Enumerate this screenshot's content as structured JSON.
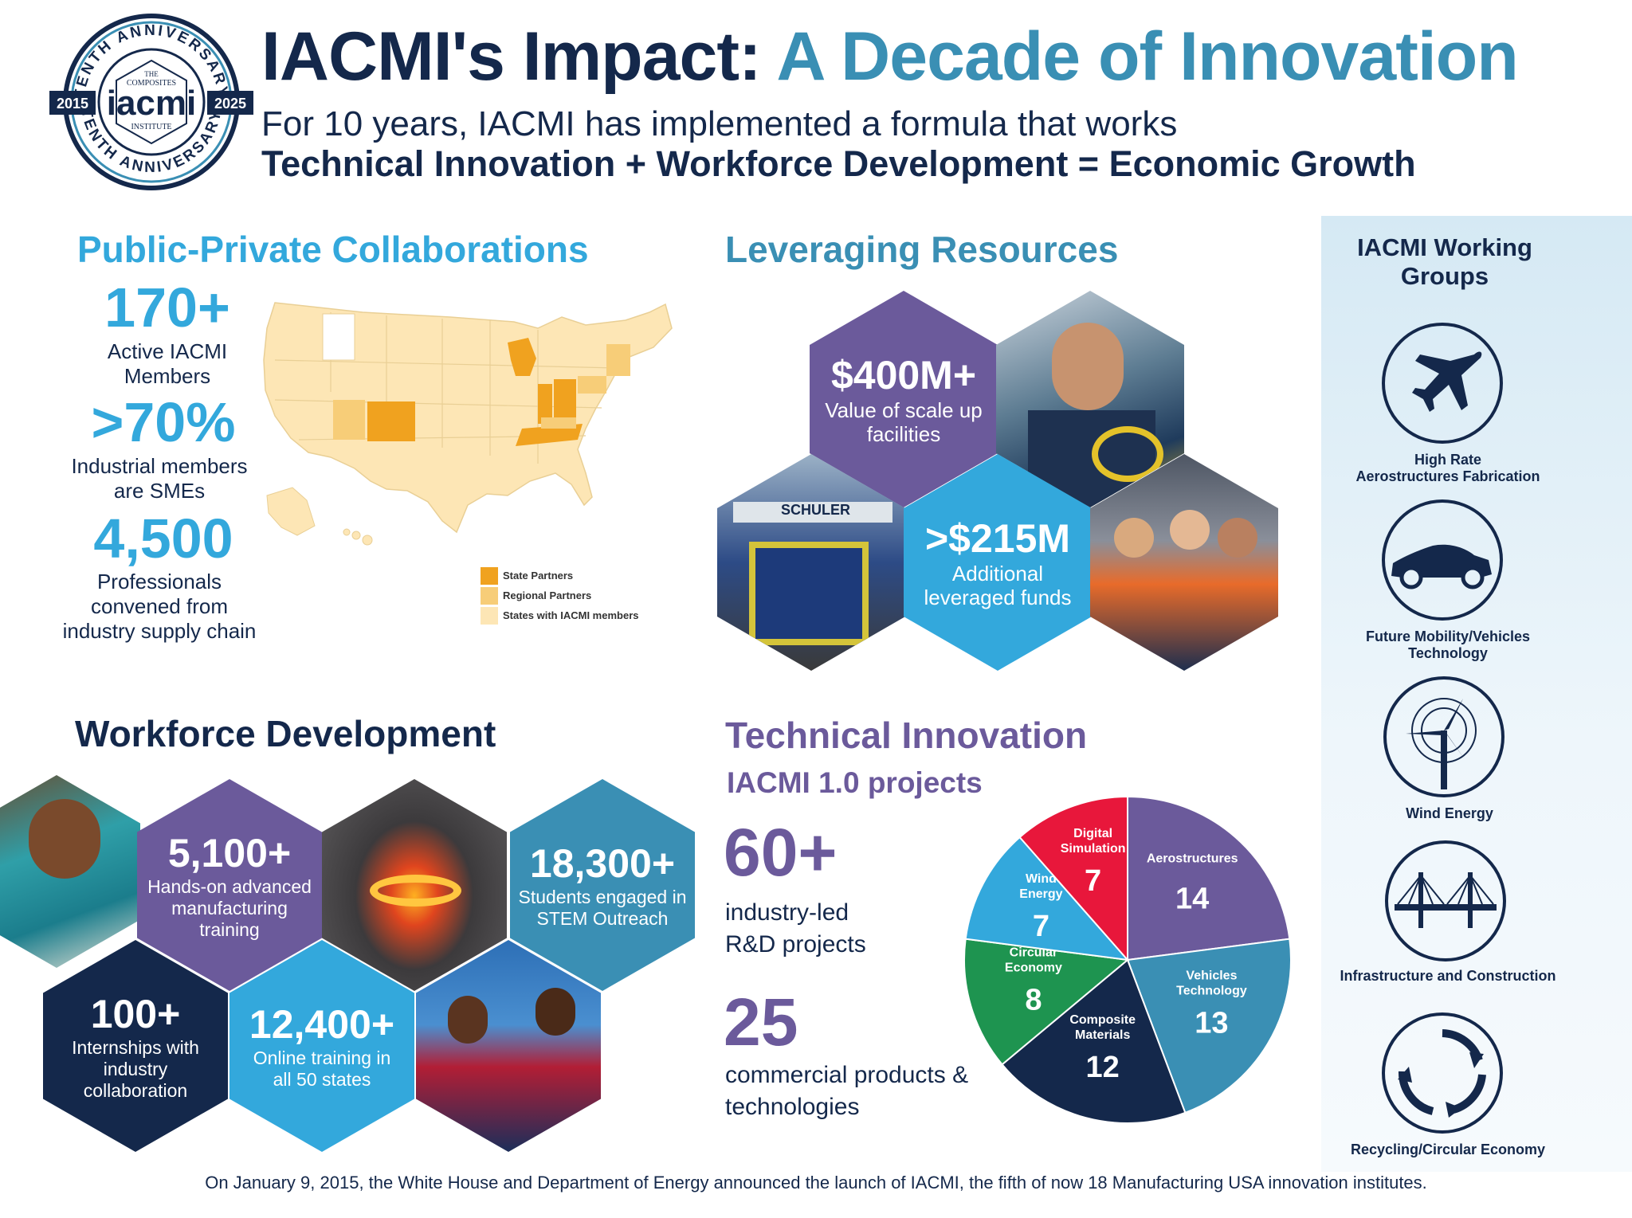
{
  "header": {
    "title_part1": "IACMI's Impact:",
    "title_part2": "A Decade of Innovation",
    "subtitle": "For 10 years, IACMI has implemented a formula that works",
    "formula": "Technical Innovation + Workforce Development = Economic Growth",
    "badge": {
      "top_arc": "TENTH ANNIVERSARY",
      "bottom_arc": "TENTH ANNIVERSARY",
      "year_left": "2015",
      "year_right": "2025",
      "the": "THE",
      "composites": "COMPOSITES",
      "logo": "iacmi",
      "institute": "INSTITUTE"
    }
  },
  "public_private": {
    "heading": "Public-Private Collaborations",
    "stats": [
      {
        "value": "170+",
        "label_line1": "Active IACMI",
        "label_line2": "Members"
      },
      {
        "value": ">70%",
        "label_line1": "Industrial members",
        "label_line2": "are SMEs"
      },
      {
        "value": "4,500",
        "label_line1": "Professionals",
        "label_line2": "convened from",
        "label_line3": "industry supply chain"
      }
    ],
    "legend": [
      {
        "label": "State Partners",
        "color": "#f0a21f"
      },
      {
        "label": "Regional Partners",
        "color": "#f7cd78"
      },
      {
        "label": "States with IACMI members",
        "color": "#fde6b5"
      }
    ]
  },
  "leveraging": {
    "heading": "Leveraging Resources",
    "stat1": {
      "value": "$400M+",
      "line1": "Value of scale up",
      "line2": "facilities"
    },
    "stat2": {
      "value": ">$215M",
      "line1": "Additional",
      "line2": "leveraged funds"
    },
    "photo_sign": "SCHULER"
  },
  "workforce": {
    "heading": "Workforce Development",
    "stats": [
      {
        "value": "5,100+",
        "line1": "Hands-on advanced",
        "line2": "manufacturing",
        "line3": "training"
      },
      {
        "value": "18,300+",
        "line1": "Students engaged in",
        "line2": "STEM Outreach"
      },
      {
        "value": "100+",
        "line1": "Internships with",
        "line2": "industry",
        "line3": "collaboration"
      },
      {
        "value": "12,400+",
        "line1": "Online training in",
        "line2": "all 50 states"
      }
    ]
  },
  "technical": {
    "heading": "Technical Innovation",
    "subheading": "IACMI 1.0 projects",
    "stat1": {
      "value": "60+",
      "line1": "industry-led",
      "line2": "R&D projects"
    },
    "stat2": {
      "value": "25",
      "line1": "commercial products &",
      "line2": "technologies"
    }
  },
  "chart_data": {
    "type": "pie",
    "slices": [
      {
        "label": "Aerostructures",
        "value": 14,
        "color": "#6b5a9b"
      },
      {
        "label": "Vehicles Technology",
        "value": 13,
        "color": "#3a8fb4"
      },
      {
        "label": "Composite Materials",
        "value": 12,
        "color": "#14284b"
      },
      {
        "label": "Circular Economy",
        "value": 8,
        "color": "#1e9450"
      },
      {
        "label": "Wind Energy",
        "value": 7,
        "color": "#33a8dc"
      },
      {
        "label": "Digital Simulation",
        "value": 7,
        "color": "#e8173b"
      }
    ]
  },
  "working_groups": {
    "heading_line1": "IACMI Working",
    "heading_line2": "Groups",
    "items": [
      {
        "icon": "airplane-icon",
        "line1": "High Rate",
        "line2": "Aerostructures Fabrication"
      },
      {
        "icon": "car-icon",
        "line1": "Future Mobility/Vehicles",
        "line2": "Technology"
      },
      {
        "icon": "wind-turbine-icon",
        "line1": "Wind Energy",
        "line2": ""
      },
      {
        "icon": "bridge-icon",
        "line1": "Infrastructure and Construction",
        "line2": ""
      },
      {
        "icon": "recycle-icon",
        "line1": "Recycling/Circular Economy",
        "line2": ""
      }
    ]
  },
  "footer": "On January 9, 2015, the White House and Department of Energy announced the launch of IACMI, the fifth of now 18 Manufacturing USA innovation institutes."
}
